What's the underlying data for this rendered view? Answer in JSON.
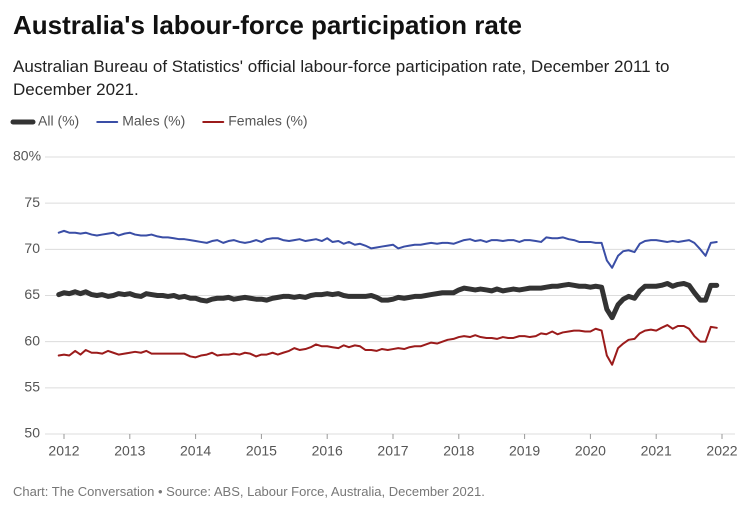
{
  "chart_data": {
    "type": "line",
    "title": "Australia's labour-force participation rate",
    "subtitle": "Australian Bureau of Statistics' official labour-force participation rate, December 2011 to December 2021.",
    "source": "Chart: The Conversation • Source: ABS, Labour Force, Australia, December 2021.",
    "x": [
      2011.92,
      2012.0,
      2012.08,
      2012.17,
      2012.25,
      2012.33,
      2012.42,
      2012.5,
      2012.58,
      2012.67,
      2012.75,
      2012.83,
      2012.92,
      2013.0,
      2013.08,
      2013.17,
      2013.25,
      2013.33,
      2013.42,
      2013.5,
      2013.58,
      2013.67,
      2013.75,
      2013.83,
      2013.92,
      2014.0,
      2014.08,
      2014.17,
      2014.25,
      2014.33,
      2014.42,
      2014.5,
      2014.58,
      2014.67,
      2014.75,
      2014.83,
      2014.92,
      2015.0,
      2015.08,
      2015.17,
      2015.25,
      2015.33,
      2015.42,
      2015.5,
      2015.58,
      2015.67,
      2015.75,
      2015.83,
      2015.92,
      2016.0,
      2016.08,
      2016.17,
      2016.25,
      2016.33,
      2016.42,
      2016.5,
      2016.58,
      2016.67,
      2016.75,
      2016.83,
      2016.92,
      2017.0,
      2017.08,
      2017.17,
      2017.25,
      2017.33,
      2017.42,
      2017.5,
      2017.58,
      2017.67,
      2017.75,
      2017.83,
      2017.92,
      2018.0,
      2018.08,
      2018.17,
      2018.25,
      2018.33,
      2018.42,
      2018.5,
      2018.58,
      2018.67,
      2018.75,
      2018.83,
      2018.92,
      2019.0,
      2019.08,
      2019.17,
      2019.25,
      2019.33,
      2019.42,
      2019.5,
      2019.58,
      2019.67,
      2019.75,
      2019.83,
      2019.92,
      2020.0,
      2020.08,
      2020.17,
      2020.25,
      2020.33,
      2020.42,
      2020.5,
      2020.58,
      2020.67,
      2020.75,
      2020.83,
      2020.92,
      2021.0,
      2021.08,
      2021.17,
      2021.25,
      2021.33,
      2021.42,
      2021.5,
      2021.58,
      2021.67,
      2021.75,
      2021.83,
      2021.92
    ],
    "series": [
      {
        "name": "All (%)",
        "color": "#333333",
        "linewidth": 5,
        "values": [
          65.1,
          65.3,
          65.2,
          65.4,
          65.2,
          65.4,
          65.1,
          65.0,
          65.1,
          64.9,
          65.0,
          65.2,
          65.1,
          65.2,
          65.0,
          64.9,
          65.2,
          65.1,
          65.0,
          65.0,
          64.9,
          65.0,
          64.8,
          64.9,
          64.7,
          64.7,
          64.5,
          64.4,
          64.6,
          64.7,
          64.7,
          64.8,
          64.6,
          64.7,
          64.8,
          64.7,
          64.6,
          64.6,
          64.5,
          64.7,
          64.8,
          64.9,
          64.9,
          64.8,
          64.9,
          64.8,
          65.0,
          65.1,
          65.1,
          65.2,
          65.1,
          65.2,
          65.0,
          64.9,
          64.9,
          64.9,
          64.9,
          65.0,
          64.8,
          64.5,
          64.5,
          64.6,
          64.8,
          64.7,
          64.8,
          64.9,
          64.9,
          65.0,
          65.1,
          65.2,
          65.3,
          65.3,
          65.3,
          65.6,
          65.8,
          65.7,
          65.6,
          65.7,
          65.6,
          65.5,
          65.7,
          65.5,
          65.6,
          65.7,
          65.6,
          65.7,
          65.8,
          65.8,
          65.8,
          65.9,
          66.0,
          66.0,
          66.1,
          66.2,
          66.1,
          66.0,
          66.0,
          65.9,
          66.0,
          65.9,
          63.5,
          62.6,
          64.0,
          64.6,
          64.9,
          64.7,
          65.5,
          66.0,
          66.0,
          66.0,
          66.1,
          66.3,
          66.0,
          66.2,
          66.3,
          66.1,
          65.3,
          64.5,
          64.5,
          66.1,
          66.1
        ]
      },
      {
        "name": "Males (%)",
        "color": "#3a4ea6",
        "linewidth": 2,
        "values": [
          71.8,
          72.0,
          71.8,
          71.8,
          71.7,
          71.8,
          71.6,
          71.5,
          71.6,
          71.7,
          71.8,
          71.5,
          71.7,
          71.8,
          71.6,
          71.5,
          71.5,
          71.6,
          71.4,
          71.3,
          71.3,
          71.2,
          71.1,
          71.1,
          71.0,
          70.9,
          70.8,
          70.7,
          70.9,
          71.0,
          70.7,
          70.9,
          71.0,
          70.8,
          70.7,
          70.8,
          71.0,
          70.8,
          71.1,
          71.2,
          71.2,
          71.0,
          70.9,
          71.0,
          71.1,
          70.9,
          71.0,
          71.1,
          70.9,
          71.2,
          70.8,
          70.9,
          70.6,
          70.8,
          70.5,
          70.6,
          70.4,
          70.1,
          70.2,
          70.3,
          70.4,
          70.5,
          70.1,
          70.3,
          70.4,
          70.5,
          70.5,
          70.6,
          70.7,
          70.6,
          70.7,
          70.7,
          70.6,
          70.8,
          71.0,
          71.1,
          70.9,
          71.0,
          70.8,
          71.0,
          71.0,
          70.9,
          71.0,
          71.0,
          70.8,
          71.0,
          71.0,
          70.9,
          70.8,
          71.3,
          71.2,
          71.2,
          71.3,
          71.1,
          71.0,
          70.8,
          70.8,
          70.8,
          70.7,
          70.7,
          68.8,
          68.0,
          69.3,
          69.8,
          69.9,
          69.7,
          70.6,
          70.9,
          71.0,
          71.0,
          70.9,
          70.8,
          70.9,
          70.8,
          70.9,
          71.0,
          70.7,
          70.0,
          69.3,
          70.7,
          70.8
        ]
      },
      {
        "name": "Females (%)",
        "color": "#9b1b1b",
        "linewidth": 2,
        "values": [
          58.5,
          58.6,
          58.5,
          59.0,
          58.6,
          59.1,
          58.8,
          58.8,
          58.7,
          59.0,
          58.8,
          58.6,
          58.7,
          58.8,
          58.9,
          58.8,
          59.0,
          58.7,
          58.7,
          58.7,
          58.7,
          58.7,
          58.7,
          58.7,
          58.4,
          58.3,
          58.5,
          58.6,
          58.8,
          58.5,
          58.6,
          58.6,
          58.7,
          58.6,
          58.8,
          58.7,
          58.4,
          58.6,
          58.6,
          58.8,
          58.6,
          58.8,
          59.0,
          59.3,
          59.1,
          59.2,
          59.4,
          59.7,
          59.5,
          59.5,
          59.4,
          59.3,
          59.6,
          59.4,
          59.6,
          59.5,
          59.1,
          59.1,
          59.0,
          59.2,
          59.1,
          59.2,
          59.3,
          59.2,
          59.4,
          59.5,
          59.5,
          59.7,
          59.9,
          59.8,
          60.0,
          60.2,
          60.3,
          60.5,
          60.6,
          60.5,
          60.7,
          60.5,
          60.4,
          60.4,
          60.3,
          60.5,
          60.4,
          60.4,
          60.6,
          60.6,
          60.5,
          60.6,
          60.9,
          60.8,
          61.1,
          60.8,
          61.0,
          61.1,
          61.2,
          61.2,
          61.1,
          61.1,
          61.4,
          61.2,
          58.5,
          57.5,
          59.3,
          59.8,
          60.2,
          60.3,
          60.9,
          61.2,
          61.3,
          61.2,
          61.5,
          61.8,
          61.4,
          61.7,
          61.7,
          61.4,
          60.6,
          60.0,
          60.0,
          61.6,
          61.5
        ]
      }
    ],
    "xlim": [
      2011.9,
      2022.05
    ],
    "xticks": [
      2012,
      2013,
      2014,
      2015,
      2016,
      2017,
      2018,
      2019,
      2020,
      2021,
      2022
    ],
    "ylim": [
      50,
      80
    ],
    "yticks": [
      50,
      55,
      60,
      65,
      70,
      75,
      {
        "value": 80,
        "label": "80%"
      }
    ],
    "grid": true
  }
}
